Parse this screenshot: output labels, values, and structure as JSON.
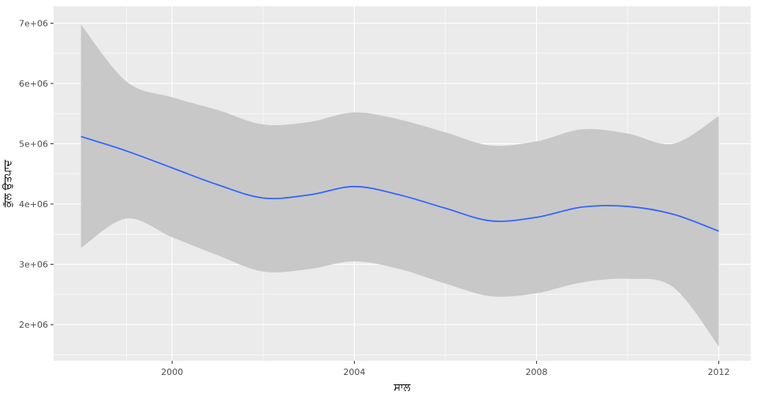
{
  "chart_data": {
    "type": "line",
    "title": "",
    "xlabel": "ਸਾਲ",
    "ylabel": "ਕੁੱਲ ਉਤਪਾਦ",
    "xlim": [
      1997.4,
      2012.7
    ],
    "ylim": [
      1400000,
      7280000
    ],
    "x_ticks": [
      2000,
      2004,
      2008,
      2012
    ],
    "x_tick_labels": [
      "2000",
      "2004",
      "2008",
      "2012"
    ],
    "y_ticks": [
      2000000,
      3000000,
      4000000,
      5000000,
      6000000,
      7000000
    ],
    "y_tick_labels": [
      "2e+06",
      "3e+06",
      "4e+06",
      "5e+06",
      "6e+06",
      "7e+06"
    ],
    "grid": true,
    "legend": "none",
    "colors": {
      "panel": "#ebebeb",
      "grid": "#ffffff",
      "ribbon": "#c8c8c8",
      "line": "#3366ff"
    },
    "series": [
      {
        "x": [
          1998,
          1999,
          2000,
          2001,
          2002,
          2003,
          2004,
          2005,
          2006,
          2007,
          2008,
          2009,
          2010,
          2011,
          2012
        ],
        "y": [
          5120000,
          4880000,
          4600000,
          4320000,
          4100000,
          4150000,
          4290000,
          4150000,
          3930000,
          3720000,
          3780000,
          3950000,
          3960000,
          3830000,
          3550000
        ],
        "ymin": [
          3270000,
          3760000,
          3450000,
          3150000,
          2880000,
          2920000,
          3050000,
          2920000,
          2680000,
          2470000,
          2520000,
          2700000,
          2760000,
          2620000,
          1640000
        ],
        "ymax": [
          6980000,
          6030000,
          5770000,
          5560000,
          5320000,
          5360000,
          5520000,
          5400000,
          5190000,
          4970000,
          5040000,
          5240000,
          5170000,
          5000000,
          5460000
        ]
      }
    ]
  }
}
